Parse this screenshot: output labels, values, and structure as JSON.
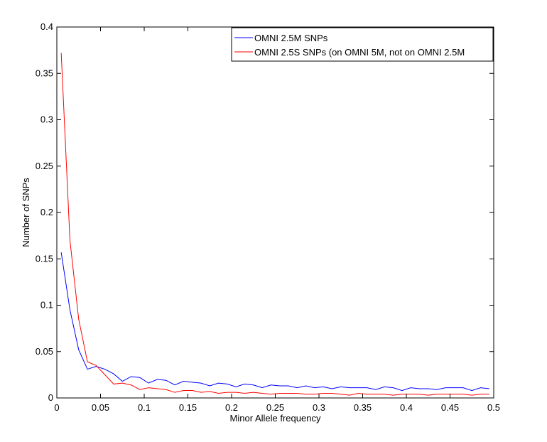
{
  "chart_data": {
    "type": "line",
    "xlabel": "Minor Allele frequency",
    "ylabel": "Number of SNPs",
    "xlim": [
      0,
      0.5
    ],
    "ylim": [
      0,
      0.4
    ],
    "x_ticks": [
      0,
      0.05,
      0.1,
      0.15,
      0.2,
      0.25,
      0.3,
      0.35,
      0.4,
      0.45,
      0.5
    ],
    "x_tick_labels": [
      "0",
      "0.05",
      "0.1",
      "0.15",
      "0.2",
      "0.25",
      "0.3",
      "0.35",
      "0.4",
      "0.45",
      "0.5"
    ],
    "y_ticks": [
      0,
      0.05,
      0.1,
      0.15,
      0.2,
      0.25,
      0.3,
      0.35,
      0.4
    ],
    "y_tick_labels": [
      "0",
      "0.05",
      "0.1",
      "0.15",
      "0.2",
      "0.25",
      "0.3",
      "0.35",
      "0.4"
    ],
    "grid": false,
    "legend_position": "top-right",
    "x": [
      0.005,
      0.015,
      0.025,
      0.035,
      0.045,
      0.055,
      0.065,
      0.075,
      0.085,
      0.095,
      0.105,
      0.115,
      0.125,
      0.135,
      0.145,
      0.155,
      0.165,
      0.175,
      0.185,
      0.195,
      0.205,
      0.215,
      0.225,
      0.235,
      0.245,
      0.255,
      0.265,
      0.275,
      0.285,
      0.295,
      0.305,
      0.315,
      0.325,
      0.335,
      0.345,
      0.355,
      0.365,
      0.375,
      0.385,
      0.395,
      0.405,
      0.415,
      0.425,
      0.435,
      0.445,
      0.455,
      0.465,
      0.475,
      0.485,
      0.495
    ],
    "series": [
      {
        "name": "OMNI 2.5M SNPs",
        "color": "#0000ff",
        "values": [
          0.157,
          0.095,
          0.052,
          0.031,
          0.034,
          0.031,
          0.026,
          0.018,
          0.023,
          0.022,
          0.016,
          0.02,
          0.019,
          0.014,
          0.018,
          0.017,
          0.016,
          0.013,
          0.016,
          0.015,
          0.012,
          0.015,
          0.014,
          0.011,
          0.014,
          0.013,
          0.013,
          0.011,
          0.013,
          0.011,
          0.012,
          0.01,
          0.012,
          0.011,
          0.011,
          0.011,
          0.009,
          0.012,
          0.011,
          0.008,
          0.011,
          0.01,
          0.01,
          0.009,
          0.011,
          0.011,
          0.011,
          0.008,
          0.011,
          0.01
        ]
      },
      {
        "name": "OMNI 2.5S SNPs (on OMNI 5M, not on OMNI 2.5M",
        "color": "#ff0000",
        "values": [
          0.372,
          0.17,
          0.085,
          0.039,
          0.035,
          0.025,
          0.015,
          0.016,
          0.014,
          0.009,
          0.011,
          0.01,
          0.009,
          0.006,
          0.008,
          0.008,
          0.006,
          0.007,
          0.005,
          0.006,
          0.006,
          0.005,
          0.006,
          0.005,
          0.004,
          0.005,
          0.005,
          0.005,
          0.004,
          0.004,
          0.005,
          0.005,
          0.004,
          0.003,
          0.005,
          0.004,
          0.004,
          0.004,
          0.003,
          0.004,
          0.004,
          0.004,
          0.003,
          0.004,
          0.004,
          0.004,
          0.004,
          0.003,
          0.004,
          0.004
        ]
      }
    ]
  }
}
